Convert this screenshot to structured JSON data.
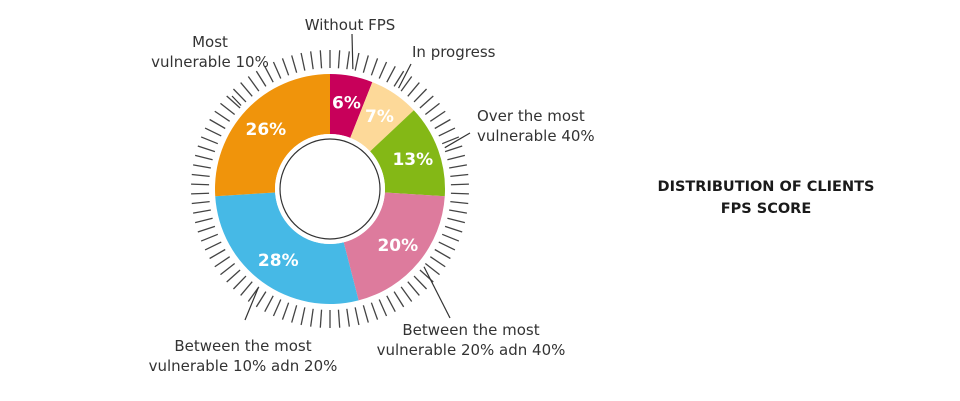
{
  "chart_data": {
    "type": "pie",
    "title_lines": [
      "DISTRIBUTION OF CLIENTS",
      "FPS SCORE"
    ],
    "slices": [
      {
        "value": 6,
        "label": "6%",
        "callout": [
          "Without FPS"
        ],
        "color": "#c8005a"
      },
      {
        "value": 7,
        "label": "7%",
        "callout": [
          "In progress"
        ],
        "color": "#fdd999"
      },
      {
        "value": 13,
        "label": "13%",
        "callout": [
          "Over the most",
          "vulnerable 40%"
        ],
        "color": "#84b816"
      },
      {
        "value": 20,
        "label": "20%",
        "callout": [
          "Between the most",
          "vulnerable 20% adn 40%"
        ],
        "color": "#dd7b9d"
      },
      {
        "value": 28,
        "label": "28%",
        "callout": [
          "Between the most",
          "vulnerable 10% adn 20%"
        ],
        "color": "#46b9e6"
      },
      {
        "value": 26,
        "label": "26%",
        "callout": [
          "Most",
          "vulnerable 10%"
        ],
        "color": "#f0940b"
      }
    ]
  }
}
